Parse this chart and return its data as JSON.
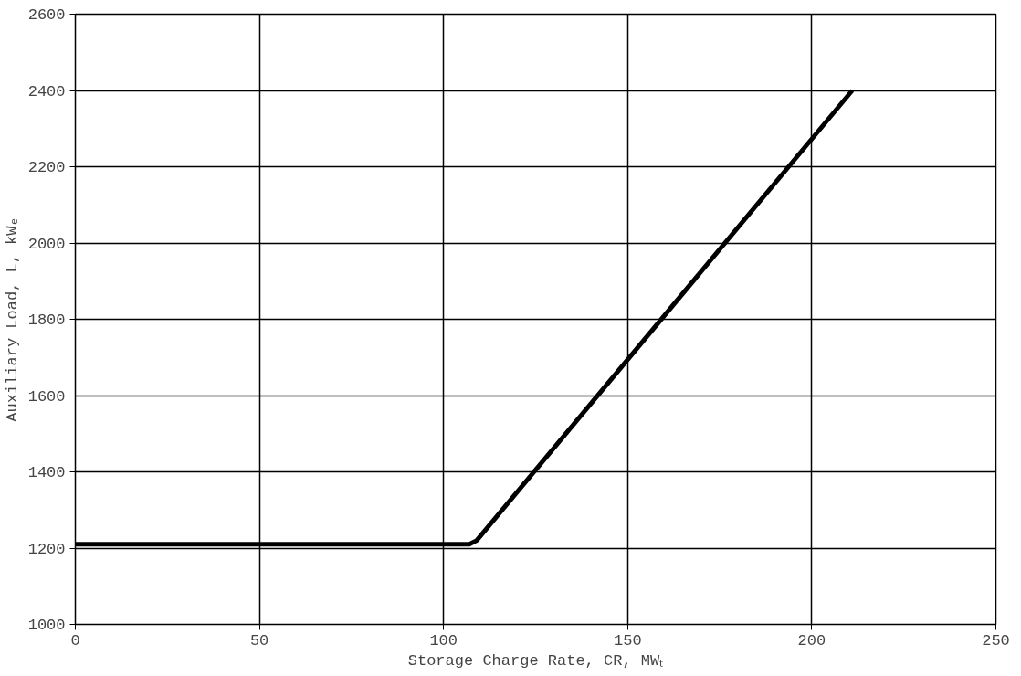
{
  "chart_data": {
    "type": "line",
    "xlabel": "Storage Charge Rate, CR, MWₜ",
    "ylabel": "Auxiliary Load, L, kWₑ",
    "x": [
      0,
      107,
      109,
      211
    ],
    "series": [
      {
        "color": "#000000",
        "values": [
          1210,
          1210,
          1220,
          2400
        ]
      }
    ],
    "xlim": [
      0,
      250
    ],
    "xticks": [
      0,
      50,
      100,
      150,
      200,
      250
    ],
    "ylim": [
      1000,
      2600
    ],
    "yticks": [
      1000,
      1200,
      1400,
      1600,
      1800,
      2000,
      2200,
      2400,
      2600
    ],
    "grid": true,
    "marker": "none",
    "line_style": "solid"
  }
}
